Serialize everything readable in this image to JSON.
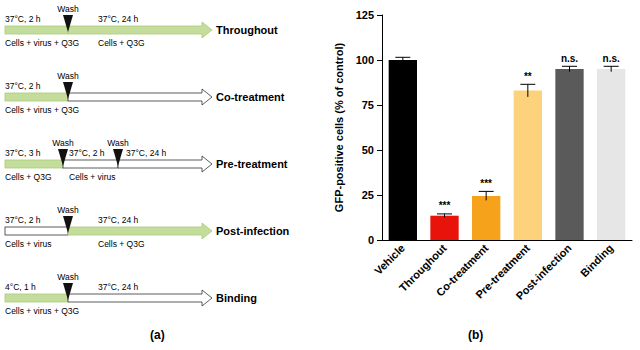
{
  "panel_a": {
    "label": "(a)",
    "wash_label": "Wash",
    "protocols": [
      {
        "name": "Throughout",
        "steps": [
          {
            "condition": "37°C, 2 h",
            "contents": "Cells + virus + Q3G",
            "treated": true
          },
          {
            "condition": "37°C, 24 h",
            "contents": "Cells + Q3G",
            "treated": true
          }
        ]
      },
      {
        "name": "Co-treatment",
        "steps": [
          {
            "condition": "37°C, 2 h",
            "contents": "Cells + virus + Q3G",
            "treated": true
          },
          {
            "treated": false
          }
        ]
      },
      {
        "name": "Pre-treatment",
        "steps": [
          {
            "condition": "37°C, 3 h",
            "contents": "Cells + Q3G",
            "treated": true
          },
          {
            "condition": "37°C, 2 h",
            "contents": "Cells + virus",
            "treated": false
          },
          {
            "condition": "37°C, 24 h",
            "treated": false
          }
        ]
      },
      {
        "name": "Post-infection",
        "steps": [
          {
            "condition": "37°C, 2 h",
            "contents": "Cells + virus",
            "treated": false
          },
          {
            "condition": "37°C, 24 h",
            "contents": "Cells + Q3G",
            "treated": true
          }
        ]
      },
      {
        "name": "Binding",
        "steps": [
          {
            "condition": "4°C, 1 h",
            "contents": "Cells + virus + Q3G",
            "treated": true
          },
          {
            "condition": "37°C, 24 h",
            "treated": false
          }
        ]
      }
    ]
  },
  "chart_data": {
    "type": "bar",
    "label": "(b)",
    "y_label": "GFP-positive cells (% of control)",
    "categories": [
      "Vehicle",
      "Throughout",
      "Co-treatment",
      "Pre-treatment",
      "Post-infection",
      "Binding"
    ],
    "values": [
      100,
      13.5,
      24.5,
      83,
      95,
      95
    ],
    "errors": [
      1.5,
      1,
      2.5,
      3.5,
      1.5,
      1.5
    ],
    "annotations": [
      null,
      "***",
      "***",
      "**",
      "n.s.",
      "n.s."
    ],
    "colors": [
      "#000000",
      "#e8140c",
      "#f7a21b",
      "#fcd27c",
      "#5a5a5a",
      "#e6e6e6"
    ],
    "ylim": [
      0,
      125
    ],
    "yticks": [
      0,
      25,
      50,
      75,
      100,
      125
    ],
    "grid": false
  }
}
